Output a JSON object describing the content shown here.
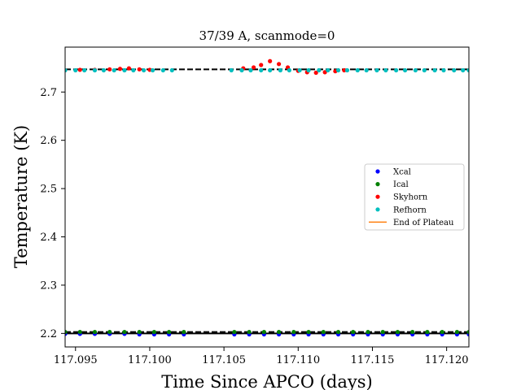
{
  "chart_data": {
    "type": "scatter",
    "title": "37/39 A, scanmode=0",
    "xlabel": "Time Since APCO (days)",
    "ylabel": "Temperature (K)",
    "xlim": [
      117.0943,
      117.1215
    ],
    "ylim": [
      2.172,
      2.793
    ],
    "x_ticks": [
      117.095,
      117.1,
      117.105,
      117.11,
      117.115,
      117.12
    ],
    "x_tick_labels": [
      "117.095",
      "117.100",
      "117.105",
      "117.110",
      "117.115",
      "117.120"
    ],
    "y_ticks": [
      2.2,
      2.3,
      2.4,
      2.5,
      2.6,
      2.7
    ],
    "y_tick_labels": [
      "2.2",
      "2.3",
      "2.4",
      "2.5",
      "2.6",
      "2.7"
    ],
    "legend_position": "center-right",
    "grid": false,
    "series": [
      {
        "name": "Xcal",
        "color": "#0000ff",
        "marker": "dot",
        "x": [
          117.0943,
          117.0953,
          117.0963,
          117.0973,
          117.0983,
          117.0993,
          117.1003,
          117.1013,
          117.1023,
          117.1057,
          117.1067,
          117.1077,
          117.1087,
          117.1097,
          117.1107,
          117.1117,
          117.1127,
          117.1137,
          117.1147,
          117.1157,
          117.1167,
          117.1177,
          117.1187,
          117.1197,
          117.1207,
          117.1215
        ],
        "y": [
          2.199,
          2.199,
          2.199,
          2.199,
          2.199,
          2.198,
          2.198,
          2.198,
          2.198,
          2.198,
          2.198,
          2.198,
          2.198,
          2.198,
          2.198,
          2.198,
          2.198,
          2.198,
          2.198,
          2.198,
          2.198,
          2.198,
          2.198,
          2.198,
          2.198,
          2.198
        ]
      },
      {
        "name": "Ical",
        "color": "#008000",
        "marker": "dot",
        "x": [
          117.0943,
          117.0953,
          117.0963,
          117.0973,
          117.0983,
          117.0993,
          117.1003,
          117.1013,
          117.1023,
          117.1057,
          117.1067,
          117.1077,
          117.1087,
          117.1097,
          117.1107,
          117.1117,
          117.1127,
          117.1137,
          117.1147,
          117.1157,
          117.1167,
          117.1177,
          117.1187,
          117.1197,
          117.1207,
          117.1215
        ],
        "y": [
          2.203,
          2.203,
          2.203,
          2.203,
          2.203,
          2.203,
          2.203,
          2.203,
          2.203,
          2.203,
          2.203,
          2.203,
          2.203,
          2.203,
          2.203,
          2.203,
          2.203,
          2.203,
          2.203,
          2.203,
          2.203,
          2.203,
          2.203,
          2.203,
          2.203,
          2.203
        ]
      },
      {
        "name": "Skyhorn",
        "color": "#ff0000",
        "marker": "dot",
        "x": [
          117.0953,
          117.0963,
          117.0973,
          117.098,
          117.0986,
          117.0993,
          117.1,
          117.1063,
          117.107,
          117.1075,
          117.1081,
          117.1087,
          117.1093,
          117.11,
          117.1106,
          117.1112,
          117.1118,
          117.1125,
          117.1131
        ],
        "y": [
          2.746,
          2.746,
          2.747,
          2.748,
          2.749,
          2.747,
          2.746,
          2.749,
          2.751,
          2.756,
          2.764,
          2.758,
          2.751,
          2.744,
          2.741,
          2.74,
          2.741,
          2.743,
          2.745
        ]
      },
      {
        "name": "Refhorn",
        "color": "#00bfbf",
        "marker": "dot",
        "x": [
          117.0943,
          117.095,
          117.0956,
          117.0963,
          117.0969,
          117.0976,
          117.0983,
          117.0989,
          117.0996,
          117.1002,
          117.1009,
          117.1015,
          117.1055,
          117.1062,
          117.1068,
          117.1075,
          117.1081,
          117.1088,
          117.1094,
          117.1101,
          117.1107,
          117.1114,
          117.112,
          117.1127,
          117.1133,
          117.114,
          117.1146,
          117.1153,
          117.1159,
          117.1166,
          117.1172,
          117.1179,
          117.1185,
          117.1192,
          117.1198,
          117.1205,
          117.1211,
          117.1215
        ],
        "y": [
          2.745,
          2.745,
          2.745,
          2.745,
          2.745,
          2.745,
          2.745,
          2.745,
          2.745,
          2.745,
          2.745,
          2.745,
          2.745,
          2.745,
          2.745,
          2.745,
          2.745,
          2.745,
          2.745,
          2.745,
          2.745,
          2.745,
          2.745,
          2.745,
          2.745,
          2.745,
          2.745,
          2.745,
          2.745,
          2.745,
          2.745,
          2.745,
          2.745,
          2.745,
          2.745,
          2.745,
          2.745,
          2.745
        ]
      },
      {
        "name": "End of Plateau",
        "color": "#ff7f0e",
        "marker": "line",
        "x": [],
        "y": []
      }
    ],
    "reference_lines": [
      {
        "style": "dashed",
        "color": "#000000",
        "y": 2.747,
        "x": [
          117.0943,
          117.1215
        ]
      },
      {
        "style": "dashed",
        "color": "#000000",
        "y": 2.203,
        "x": [
          117.0943,
          117.1215
        ]
      },
      {
        "style": "solid",
        "color": "#000000",
        "y": 2.2,
        "x": [
          117.0943,
          117.1215
        ]
      }
    ]
  }
}
